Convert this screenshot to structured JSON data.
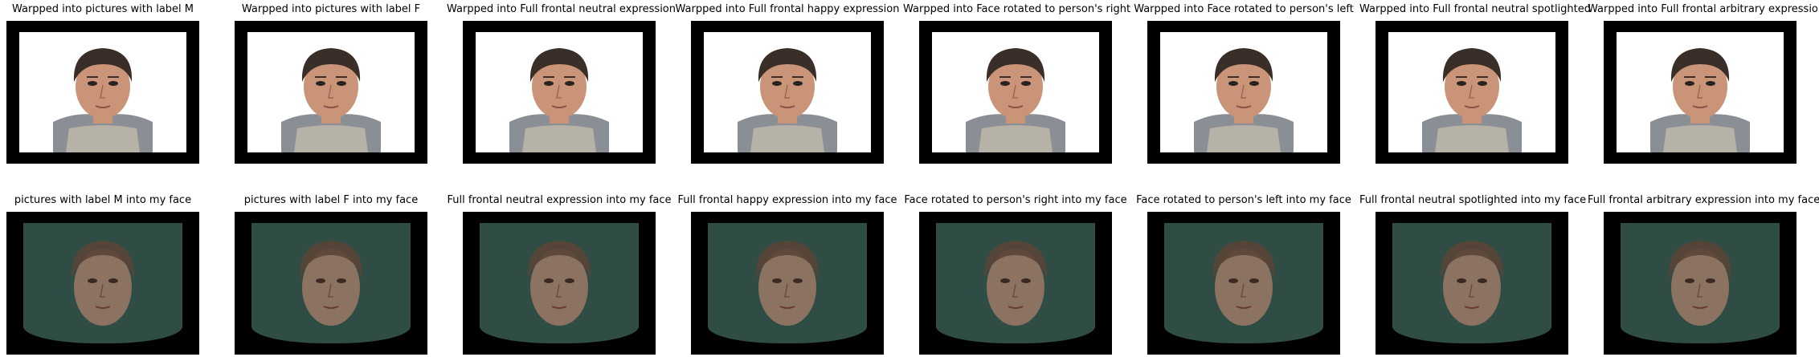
{
  "top_row": [
    {
      "title": "Warpped into pictures with label M"
    },
    {
      "title": "Warpped into pictures with label F"
    },
    {
      "title": "Warpped into Full frontal neutral expression"
    },
    {
      "title": "Warpped into Full frontal happy expression"
    },
    {
      "title": "Warpped into Face rotated to person's right"
    },
    {
      "title": "Warpped into Face rotated to person's left"
    },
    {
      "title": "Warpped into Full frontal neutral spotlighted"
    },
    {
      "title": "Warpped into Full frontal arbitrary expression"
    }
  ],
  "bottom_row": [
    {
      "title": "pictures with label M into my face"
    },
    {
      "title": "pictures with label F into my face"
    },
    {
      "title": "Full frontal neutral expression into my face"
    },
    {
      "title": "Full frontal happy expression into my face"
    },
    {
      "title": "Face rotated to person's right into my face"
    },
    {
      "title": "Face rotated to person's left into my face"
    },
    {
      "title": "Full frontal neutral spotlighted into my face"
    },
    {
      "title": "Full frontal arbitrary expression into my face"
    }
  ],
  "colors": {
    "frame": "#000000",
    "canvas_top": "#ffffff",
    "skin_top": "#c99478",
    "hair_top": "#3a2f28",
    "hoodie_top": "#8a8f95",
    "bg_bottom": "#2f4c45",
    "skin_bottom": "#9c7a66",
    "hair_bottom": "#5a4436"
  }
}
